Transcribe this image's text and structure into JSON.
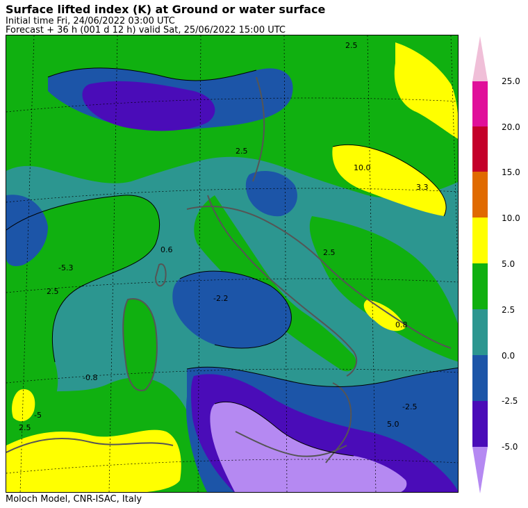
{
  "header": {
    "title": "Surface lifted index (K) at Ground or water surface",
    "initial_time": "Initial time  Fri, 24/06/2022  03:00 UTC",
    "forecast": "Forecast  +  36 h  (001 d 12 h)  valid Sat, 25/06/2022 15:00 UTC"
  },
  "footer": {
    "credit": "Moloch Model, CNR-ISAC, Italy"
  },
  "colorbar": {
    "ticks": [
      "25.0",
      "20.0",
      "15.0",
      "10.0",
      "5.0",
      "2.5",
      "0.0",
      "-2.5",
      "-5.0"
    ],
    "colors": {
      "above_25": "#f0bfd8",
      "c20_25": "#e0109a",
      "c15_20": "#c4002a",
      "c10_15": "#e06a00",
      "c5_10": "#ffff00",
      "c2_5_5": "#10b010",
      "c0_2_5": "#2c9690",
      "cm2_5_0": "#1c55a8",
      "cm5_m2_5": "#4a0cb8",
      "below_m5": "#b589f2"
    }
  },
  "contour_labels": [
    "-5.3",
    "2.5",
    "0.6",
    "-2.2",
    "2.5",
    "-0.8",
    "-5",
    "2.5",
    "-2.5",
    "5.0",
    "10.0",
    "3.3",
    "0.8",
    "2.5",
    "2.5"
  ]
}
